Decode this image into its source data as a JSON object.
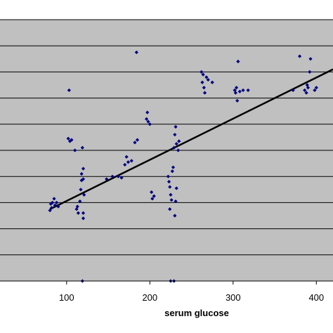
{
  "chart_data": {
    "type": "scatter",
    "title": "",
    "xlabel": "serum glucose",
    "ylabel": "",
    "xlim": [
      20,
      420
    ],
    "ylim": [
      0,
      10
    ],
    "grid": true,
    "x_ticks": [
      100,
      200,
      300,
      400
    ],
    "background": "#c0c0c0",
    "point_color": "#00007f",
    "line_color": "#000000",
    "trendline": {
      "x": [
        80,
        420
      ],
      "y": [
        2.75,
        8.1
      ]
    },
    "series": [
      {
        "points": [
          [
            80,
            2.7
          ],
          [
            81,
            2.95
          ],
          [
            82,
            2.8
          ],
          [
            83,
            3.0
          ],
          [
            85,
            3.15
          ],
          [
            86,
            2.9
          ],
          [
            88,
            3.0
          ],
          [
            90,
            2.85
          ],
          [
            103,
            7.3
          ],
          [
            102,
            5.45
          ],
          [
            104,
            5.35
          ],
          [
            106,
            5.4
          ],
          [
            110,
            5.0
          ],
          [
            112,
            2.75
          ],
          [
            113,
            2.85
          ],
          [
            114,
            2.6
          ],
          [
            116,
            3.05
          ],
          [
            117,
            3.5
          ],
          [
            118,
            3.85
          ],
          [
            118,
            4.1
          ],
          [
            119,
            5.1
          ],
          [
            120,
            3.9
          ],
          [
            120,
            4.3
          ],
          [
            120,
            2.4
          ],
          [
            120,
            2.6
          ],
          [
            121,
            3.3
          ],
          [
            119,
            0.0
          ],
          [
            148,
            3.9
          ],
          [
            155,
            4.0
          ],
          [
            162,
            4.0
          ],
          [
            166,
            3.95
          ],
          [
            170,
            4.45
          ],
          [
            172,
            4.75
          ],
          [
            174,
            4.55
          ],
          [
            178,
            4.6
          ],
          [
            182,
            5.3
          ],
          [
            185,
            5.4
          ],
          [
            184,
            8.75
          ],
          [
            196,
            6.2
          ],
          [
            197,
            6.45
          ],
          [
            198,
            6.1
          ],
          [
            200,
            6.0
          ],
          [
            202,
            3.4
          ],
          [
            203,
            3.15
          ],
          [
            205,
            3.25
          ],
          [
            222,
            4.0
          ],
          [
            223,
            3.8
          ],
          [
            224,
            3.6
          ],
          [
            225,
            3.3
          ],
          [
            226,
            3.1
          ],
          [
            227,
            4.2
          ],
          [
            224,
            2.75
          ],
          [
            225,
            0.0
          ],
          [
            229,
            0.0
          ],
          [
            230,
            2.5
          ],
          [
            228,
            4.35
          ],
          [
            232,
            3.55
          ],
          [
            231,
            3.05
          ],
          [
            229,
            5.1
          ],
          [
            230,
            5.6
          ],
          [
            231,
            5.9
          ],
          [
            232,
            5.25
          ],
          [
            234,
            5.0
          ],
          [
            235,
            5.35
          ],
          [
            262,
            8.0
          ],
          [
            263,
            7.6
          ],
          [
            264,
            7.9
          ],
          [
            265,
            7.4
          ],
          [
            266,
            7.2
          ],
          [
            268,
            7.8
          ],
          [
            270,
            7.7
          ],
          [
            275,
            7.6
          ],
          [
            302,
            7.3
          ],
          [
            303,
            7.2
          ],
          [
            304,
            7.4
          ],
          [
            305,
            6.9
          ],
          [
            306,
            8.4
          ],
          [
            308,
            7.25
          ],
          [
            312,
            7.3
          ],
          [
            318,
            7.3
          ],
          [
            372,
            7.3
          ],
          [
            380,
            8.6
          ],
          [
            386,
            7.3
          ],
          [
            388,
            7.2
          ],
          [
            389,
            7.5
          ],
          [
            390,
            7.4
          ],
          [
            392,
            8.0
          ],
          [
            393,
            8.5
          ],
          [
            398,
            7.3
          ],
          [
            400,
            7.4
          ]
        ]
      }
    ]
  }
}
